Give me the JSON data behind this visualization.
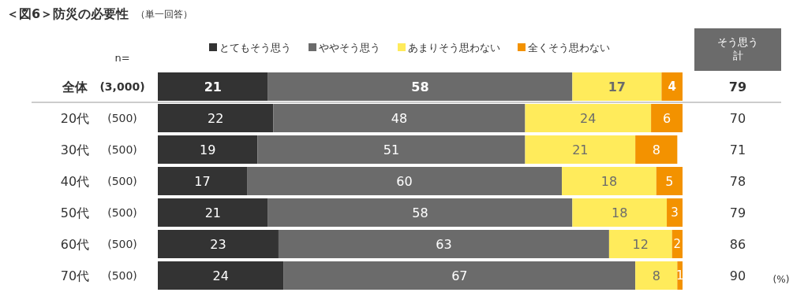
{
  "chart_data": {
    "type": "bar",
    "orientation": "horizontal",
    "stacked": true,
    "title": "＜図6＞防災の必要性",
    "subtitle": "（単一回答）",
    "categories": [
      "全体",
      "20代",
      "30代",
      "40代",
      "50代",
      "60代",
      "70代"
    ],
    "series": [
      {
        "name": "とてもそう思う",
        "color": "#333333",
        "values": [
          21,
          22,
          19,
          17,
          21,
          23,
          24
        ]
      },
      {
        "name": "ややそう思う",
        "color": "#6b6b6b",
        "values": [
          58,
          48,
          51,
          60,
          58,
          63,
          67
        ]
      },
      {
        "name": "あまりそう思わない",
        "color": "#ffeb5b",
        "values": [
          17,
          24,
          21,
          18,
          18,
          12,
          8
        ]
      },
      {
        "name": "全くそう思わない",
        "color": "#f39200",
        "values": [
          4,
          6,
          8,
          5,
          3,
          2,
          1
        ]
      }
    ],
    "data_labels": true,
    "legend": "top",
    "annotations": [
      "n=",
      "(3,000)",
      "(500)",
      "(500)",
      "(500)",
      "(500)",
      "(500)",
      "(500)",
      "そう思う計",
      "79",
      "70",
      "71",
      "78",
      "79",
      "86",
      "90",
      "(%)"
    ]
  }
}
